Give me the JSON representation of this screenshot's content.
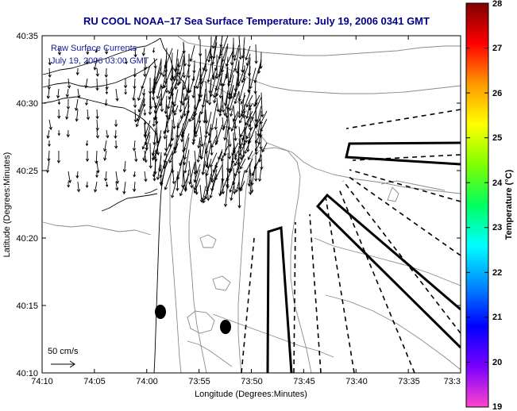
{
  "title": "RU COOL   NOAA–17  Sea Surface Temperature:  July 19, 2006 0341 GMT",
  "legend": {
    "line1": "Raw Surface Currents",
    "line2": "July 19, 2006 03:00 GMT",
    "scale_label": "50 cm/s"
  },
  "axes": {
    "xlabel": "Longitude (Degrees:Minutes)",
    "ylabel": "Latitude (Degrees:Minutes)",
    "xticks": [
      "74:10",
      "74:05",
      "74:00",
      "73:55",
      "73:50",
      "73:45",
      "73:40",
      "73:35",
      "73:3"
    ],
    "yticks": [
      "40:35",
      "40:30",
      "40:25",
      "40:20",
      "40:15",
      "40:10"
    ]
  },
  "colorbar": {
    "label": "Temperature (°C)",
    "ticks": [
      "28",
      "27",
      "26",
      "25",
      "24",
      "23",
      "22",
      "21",
      "20",
      "19"
    ],
    "range": [
      19,
      28
    ],
    "colors": [
      "#ff44cc",
      "#7a00ff",
      "#0000ff",
      "#0088ff",
      "#00ffff",
      "#00ff60",
      "#80ff00",
      "#ffff00",
      "#ff9900",
      "#ff0000",
      "#800000"
    ]
  },
  "markers": {
    "station_count": 2
  }
}
